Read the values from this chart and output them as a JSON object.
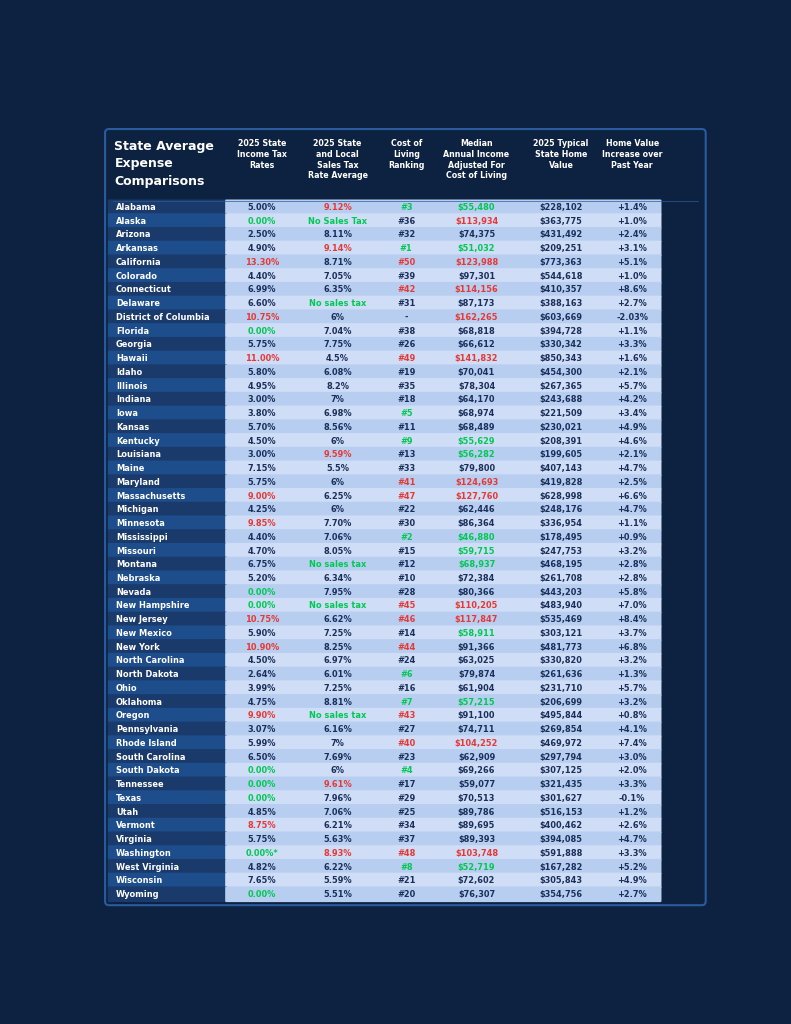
{
  "title": "State Average\nExpense\nComparisons",
  "col_headers": [
    "2025 State\nIncome Tax\nRates",
    "2025 State\nand Local\nSales Tax\nRate Average",
    "Cost of\nLiving\nRanking",
    "Median\nAnnual Income\nAdjusted For\nCost of Living",
    "2025 Typical\nState Home\nValue",
    "Home Value\nIncrease over\nPast Year"
  ],
  "rows": [
    [
      "Alabama",
      "5.00%",
      "9.12%",
      "#3",
      "$55,480",
      "$228,102",
      "+1.4%"
    ],
    [
      "Alaska",
      "0.00%",
      "No Sales Tax",
      "#36",
      "$113,934",
      "$363,775",
      "+1.0%"
    ],
    [
      "Arizona",
      "2.50%",
      "8.11%",
      "#32",
      "$74,375",
      "$431,492",
      "+2.4%"
    ],
    [
      "Arkansas",
      "4.90%",
      "9.14%",
      "#1",
      "$51,032",
      "$209,251",
      "+3.1%"
    ],
    [
      "California",
      "13.30%",
      "8.71%",
      "#50",
      "$123,988",
      "$773,363",
      "+5.1%"
    ],
    [
      "Colorado",
      "4.40%",
      "7.05%",
      "#39",
      "$97,301",
      "$544,618",
      "+1.0%"
    ],
    [
      "Connecticut",
      "6.99%",
      "6.35%",
      "#42",
      "$114,156",
      "$410,357",
      "+8.6%"
    ],
    [
      "Delaware",
      "6.60%",
      "No sales tax",
      "#31",
      "$87,173",
      "$388,163",
      "+2.7%"
    ],
    [
      "District of Columbia",
      "10.75%",
      "6%",
      "-",
      "$162,265",
      "$603,669",
      "-2.03%"
    ],
    [
      "Florida",
      "0.00%",
      "7.04%",
      "#38",
      "$68,818",
      "$394,728",
      "+1.1%"
    ],
    [
      "Georgia",
      "5.75%",
      "7.75%",
      "#26",
      "$66,612",
      "$330,342",
      "+3.3%"
    ],
    [
      "Hawaii",
      "11.00%",
      "4.5%",
      "#49",
      "$141,832",
      "$850,343",
      "+1.6%"
    ],
    [
      "Idaho",
      "5.80%",
      "6.08%",
      "#19",
      "$70,041",
      "$454,300",
      "+2.1%"
    ],
    [
      "Illinois",
      "4.95%",
      "8.2%",
      "#35",
      "$78,304",
      "$267,365",
      "+5.7%"
    ],
    [
      "Indiana",
      "3.00%",
      "7%",
      "#18",
      "$64,170",
      "$243,688",
      "+4.2%"
    ],
    [
      "Iowa",
      "3.80%",
      "6.98%",
      "#5",
      "$68,974",
      "$221,509",
      "+3.4%"
    ],
    [
      "Kansas",
      "5.70%",
      "8.56%",
      "#11",
      "$68,489",
      "$230,021",
      "+4.9%"
    ],
    [
      "Kentucky",
      "4.50%",
      "6%",
      "#9",
      "$55,629",
      "$208,391",
      "+4.6%"
    ],
    [
      "Louisiana",
      "3.00%",
      "9.59%",
      "#13",
      "$56,282",
      "$199,605",
      "+2.1%"
    ],
    [
      "Maine",
      "7.15%",
      "5.5%",
      "#33",
      "$79,800",
      "$407,143",
      "+4.7%"
    ],
    [
      "Maryland",
      "5.75%",
      "6%",
      "#41",
      "$124,693",
      "$419,828",
      "+2.5%"
    ],
    [
      "Massachusetts",
      "9.00%",
      "6.25%",
      "#47",
      "$127,760",
      "$628,998",
      "+6.6%"
    ],
    [
      "Michigan",
      "4.25%",
      "6%",
      "#22",
      "$62,446",
      "$248,176",
      "+4.7%"
    ],
    [
      "Minnesota",
      "9.85%",
      "7.70%",
      "#30",
      "$86,364",
      "$336,954",
      "+1.1%"
    ],
    [
      "Mississippi",
      "4.40%",
      "7.06%",
      "#2",
      "$46,880",
      "$178,495",
      "+0.9%"
    ],
    [
      "Missouri",
      "4.70%",
      "8.05%",
      "#15",
      "$59,715",
      "$247,753",
      "+3.2%"
    ],
    [
      "Montana",
      "6.75%",
      "No sales tax",
      "#12",
      "$68,937",
      "$468,195",
      "+2.8%"
    ],
    [
      "Nebraska",
      "5.20%",
      "6.34%",
      "#10",
      "$72,384",
      "$261,708",
      "+2.8%"
    ],
    [
      "Nevada",
      "0.00%",
      "7.95%",
      "#28",
      "$80,366",
      "$443,203",
      "+5.8%"
    ],
    [
      "New Hampshire",
      "0.00%",
      "No sales tax",
      "#45",
      "$110,205",
      "$483,940",
      "+7.0%"
    ],
    [
      "New Jersey",
      "10.75%",
      "6.62%",
      "#46",
      "$117,847",
      "$535,469",
      "+8.4%"
    ],
    [
      "New Mexico",
      "5.90%",
      "7.25%",
      "#14",
      "$58,911",
      "$303,121",
      "+3.7%"
    ],
    [
      "New York",
      "10.90%",
      "8.25%",
      "#44",
      "$91,366",
      "$481,773",
      "+6.8%"
    ],
    [
      "North Carolina",
      "4.50%",
      "6.97%",
      "#24",
      "$63,025",
      "$330,820",
      "+3.2%"
    ],
    [
      "North Dakota",
      "2.64%",
      "6.01%",
      "#6",
      "$79,874",
      "$261,636",
      "+1.3%"
    ],
    [
      "Ohio",
      "3.99%",
      "7.25%",
      "#16",
      "$61,904",
      "$231,710",
      "+5.7%"
    ],
    [
      "Oklahoma",
      "4.75%",
      "8.81%",
      "#7",
      "$57,215",
      "$206,699",
      "+3.2%"
    ],
    [
      "Oregon",
      "9.90%",
      "No sales tax",
      "#43",
      "$91,100",
      "$495,844",
      "+0.8%"
    ],
    [
      "Pennsylvania",
      "3.07%",
      "6.16%",
      "#27",
      "$74,711",
      "$269,854",
      "+4.1%"
    ],
    [
      "Rhode Island",
      "5.99%",
      "7%",
      "#40",
      "$104,252",
      "$469,972",
      "+7.4%"
    ],
    [
      "South Carolina",
      "6.50%",
      "7.69%",
      "#23",
      "$62,909",
      "$297,794",
      "+3.0%"
    ],
    [
      "South Dakota",
      "0.00%",
      "6%",
      "#4",
      "$69,266",
      "$307,125",
      "+2.0%"
    ],
    [
      "Tennessee",
      "0.00%",
      "9.61%",
      "#17",
      "$59,077",
      "$321,435",
      "+3.3%"
    ],
    [
      "Texas",
      "0.00%",
      "7.96%",
      "#29",
      "$70,513",
      "$301,627",
      "-0.1%"
    ],
    [
      "Utah",
      "4.85%",
      "7.06%",
      "#25",
      "$89,786",
      "$516,153",
      "+1.2%"
    ],
    [
      "Vermont",
      "8.75%",
      "6.21%",
      "#34",
      "$89,695",
      "$400,462",
      "+2.6%"
    ],
    [
      "Virginia",
      "5.75%",
      "5.63%",
      "#37",
      "$89,393",
      "$394,085",
      "+4.7%"
    ],
    [
      "Washington",
      "0.00%*",
      "8.93%",
      "#48",
      "$103,748",
      "$591,888",
      "+3.3%"
    ],
    [
      "West Virginia",
      "4.82%",
      "6.22%",
      "#8",
      "$52,719",
      "$167,282",
      "+5.2%"
    ],
    [
      "Wisconsin",
      "7.65%",
      "5.59%",
      "#21",
      "$72,602",
      "$305,843",
      "+4.9%"
    ],
    [
      "Wyoming",
      "0.00%",
      "5.51%",
      "#20",
      "$76,307",
      "$354,756",
      "+2.7%"
    ]
  ],
  "income_tax_red": [
    "13.30%",
    "10.75%",
    "11.00%",
    "9.00%",
    "9.85%",
    "10.90%",
    "9.90%",
    "8.75%"
  ],
  "sales_tax_red": [
    "9.12%",
    "9.14%",
    "9.59%",
    "9.61%",
    "8.93%"
  ],
  "sales_tax_green": [
    "No Sales Tax",
    "No sales tax"
  ],
  "ranking_red": [
    "#50",
    "#42",
    "#49",
    "#41",
    "#47",
    "#45",
    "#46",
    "#44",
    "#43",
    "#40",
    "#48"
  ],
  "ranking_green": [
    "#3",
    "#1",
    "#5",
    "#9",
    "#2",
    "#4",
    "#6",
    "#7",
    "#8"
  ],
  "median_red": [
    "$113,934",
    "$123,988",
    "$114,156",
    "$162,265",
    "$141,832",
    "$124,693",
    "$127,760",
    "$117,847",
    "$110,205",
    "$104,252",
    "$103,748"
  ],
  "median_green": [
    "$55,480",
    "$51,032",
    "$55,629",
    "$56,282",
    "$46,880",
    "$59,715",
    "$68,937",
    "$58,911",
    "$57,215",
    "$52,719"
  ],
  "bg_outer": "#0d2240",
  "bg_header": "#0d2240",
  "state_bg_dark": "#1a3a6b",
  "state_bg_light": "#1e4d8c",
  "data_bg_dark": "#b8cef0",
  "data_bg_light": "#cfddf7",
  "text_white": "#ffffff",
  "text_dark": "#1a2f5a",
  "text_red": "#e53935",
  "text_green": "#00c853",
  "figw": 7.91,
  "figh": 10.24
}
